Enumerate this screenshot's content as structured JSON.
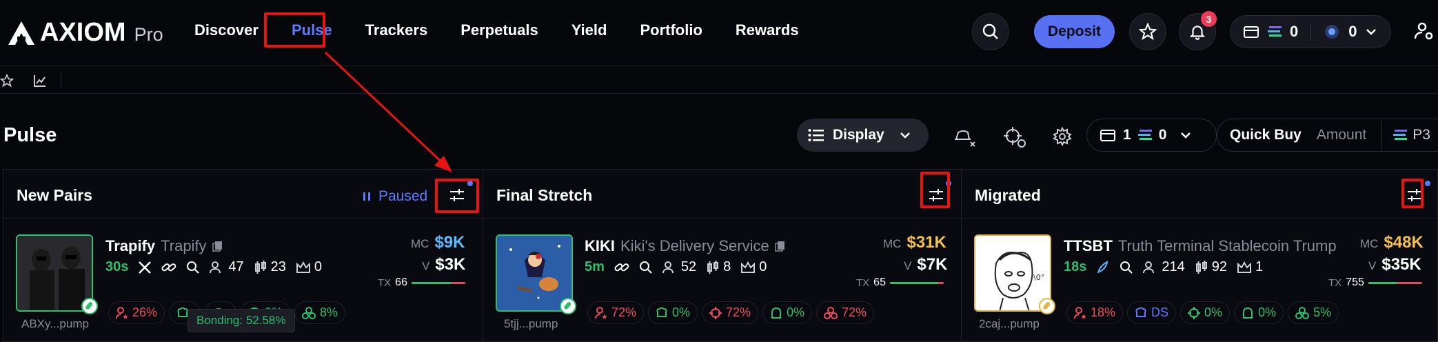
{
  "logo": {
    "brand": "AXIOM",
    "suffix": "Pro"
  },
  "nav": {
    "items": [
      {
        "label": "Discover",
        "active": false
      },
      {
        "label": "Pulse",
        "active": true
      },
      {
        "label": "Trackers",
        "active": false
      },
      {
        "label": "Perpetuals",
        "active": false
      },
      {
        "label": "Yield",
        "active": false
      },
      {
        "label": "Portfolio",
        "active": false
      },
      {
        "label": "Rewards",
        "active": false
      }
    ]
  },
  "header": {
    "deposit_label": "Deposit",
    "notification_count": "3",
    "wallet_sol": "0",
    "wallet_other": "0"
  },
  "page": {
    "title": "Pulse"
  },
  "toolbar": {
    "display_label": "Display",
    "wallet_count": "1",
    "wallet_sol": "0",
    "quick_buy_label": "Quick Buy",
    "amount_placeholder": "Amount",
    "preset_label": "P3"
  },
  "panels": {
    "new_pairs": {
      "title": "New Pairs",
      "status": "Paused",
      "card": {
        "symbol": "Trapify",
        "name": "Trapify",
        "age": "30s",
        "holders": "47",
        "pro_traders": "23",
        "kols": "0",
        "mc_label": "MC",
        "mc_value": "$9K",
        "v_label": "V",
        "v_value": "$3K",
        "tx_label": "TX",
        "tx_value": "66",
        "address": "ABXy...pump",
        "pills": [
          "26%",
          "",
          "",
          "0%",
          "8%"
        ],
        "tooltip": "Bonding: 52.58%"
      }
    },
    "final_stretch": {
      "title": "Final Stretch",
      "card": {
        "symbol": "KIKI",
        "name": "Kiki's Delivery Service",
        "age": "5m",
        "holders": "52",
        "pro_traders": "8",
        "kols": "0",
        "mc_label": "MC",
        "mc_value": "$31K",
        "v_label": "V",
        "v_value": "$7K",
        "tx_label": "TX",
        "tx_value": "65",
        "address": "5tjj...pump",
        "pills": [
          "72%",
          "0%",
          "72%",
          "0%",
          "72%"
        ]
      }
    },
    "migrated": {
      "title": "Migrated",
      "card": {
        "symbol": "TTSBT",
        "name": "Truth Terminal Stablecoin Trump",
        "age": "18s",
        "holders": "214",
        "pro_traders": "92",
        "kols": "1",
        "mc_label": "MC",
        "mc_value": "$48K",
        "v_label": "V",
        "v_value": "$35K",
        "tx_label": "TX",
        "tx_value": "755",
        "address": "2caj...pump",
        "pills": [
          "18%",
          "DS",
          "0%",
          "0%",
          "5%"
        ]
      }
    }
  },
  "colors": {
    "accent": "#5d7bff",
    "green": "#2fbf71",
    "red": "#ef4d5e",
    "yellow": "#f4c04e",
    "annotation": "#e81414"
  }
}
